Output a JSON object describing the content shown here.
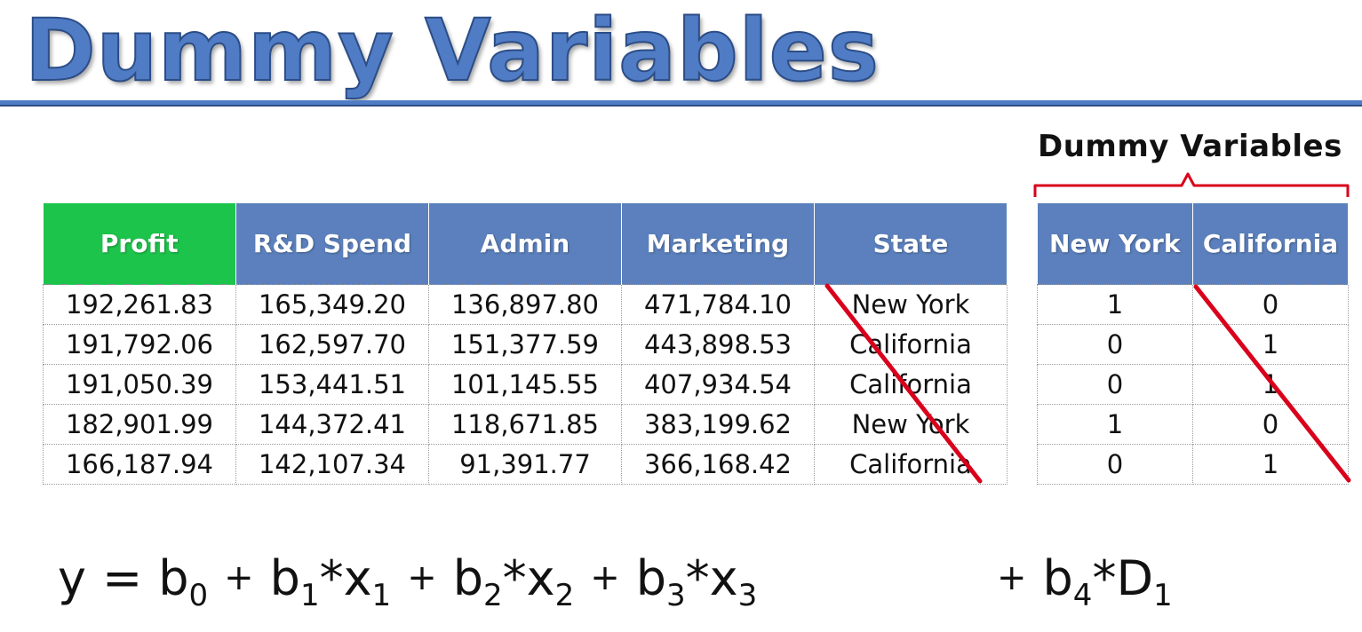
{
  "title": "Dummy Variables",
  "colors": {
    "header_blue": "#5b80bd",
    "profit_green": "#1dc44b",
    "title_blue": "#4f7cc4",
    "strike_red": "#d9001b"
  },
  "main_table": {
    "headers": [
      "Profit",
      "R&D Spend",
      "Admin",
      "Marketing",
      "State"
    ],
    "rows": [
      [
        "192,261.83",
        "165,349.20",
        "136,897.80",
        "471,784.10",
        "New York"
      ],
      [
        "191,792.06",
        "162,597.70",
        "151,377.59",
        "443,898.53",
        "California"
      ],
      [
        "191,050.39",
        "153,441.51",
        "101,145.55",
        "407,934.54",
        "California"
      ],
      [
        "182,901.99",
        "144,372.41",
        "118,671.85",
        "383,199.62",
        "New York"
      ],
      [
        "166,187.94",
        "142,107.34",
        "91,391.77",
        "366,168.42",
        "California"
      ]
    ]
  },
  "dummy_section": {
    "label": "Dummy Variables",
    "headers": [
      "New York",
      "California"
    ],
    "rows": [
      [
        "1",
        "0"
      ],
      [
        "0",
        "1"
      ],
      [
        "0",
        "1"
      ],
      [
        "1",
        "0"
      ],
      [
        "0",
        "1"
      ]
    ]
  },
  "equation": {
    "y": "y",
    "eq": "=",
    "plus": "+",
    "times": "*",
    "b": "b",
    "x": "x",
    "d": "D",
    "s0": "0",
    "s1": "1",
    "s2": "2",
    "s3": "3",
    "s4": "4"
  }
}
